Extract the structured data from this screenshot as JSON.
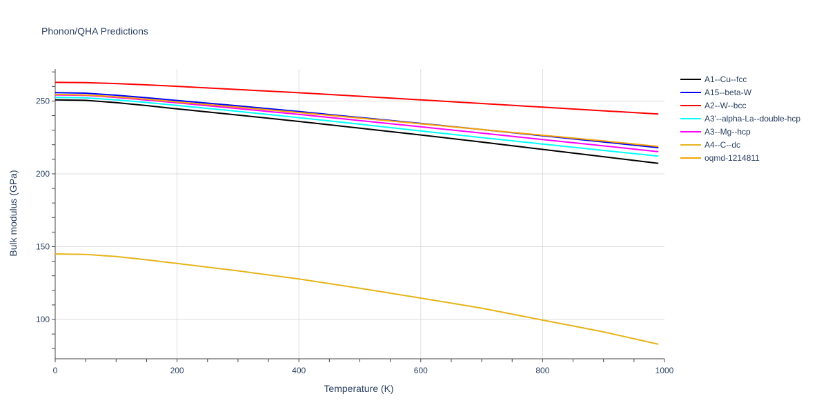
{
  "chart_data": {
    "type": "line",
    "title": "Phonon/QHA Predictions",
    "xlabel": "Temperature (K)",
    "ylabel": "Bulk modulus (GPa)",
    "xlim": [
      0,
      1000
    ],
    "ylim": [
      73,
      272
    ],
    "x_ticks": [
      0,
      200,
      400,
      600,
      800,
      1000
    ],
    "x_tick_labels": [
      "0",
      "200",
      "400",
      "600",
      "800",
      "1000"
    ],
    "y_ticks": [
      100,
      150,
      200,
      250
    ],
    "y_tick_labels": [
      "100",
      "150",
      "200",
      "250"
    ],
    "grid": true,
    "legend_position": "right",
    "x": [
      0,
      50,
      100,
      150,
      200,
      300,
      400,
      500,
      600,
      700,
      800,
      900,
      990
    ],
    "series": [
      {
        "name": "A1--Cu--fcc",
        "color": "#000000",
        "values": [
          250.8,
          250.5,
          248.9,
          246.9,
          244.6,
          240.4,
          236.0,
          231.4,
          226.7,
          221.8,
          216.8,
          211.8,
          207.2
        ]
      },
      {
        "name": "A15--beta-W",
        "color": "#0000ff",
        "values": [
          255.8,
          255.4,
          254.0,
          252.3,
          250.4,
          246.7,
          242.8,
          238.7,
          234.6,
          230.4,
          226.2,
          221.9,
          218.0
        ]
      },
      {
        "name": "A2--W--bcc",
        "color": "#ff0000",
        "values": [
          262.8,
          262.6,
          262.0,
          261.1,
          260.1,
          257.9,
          255.7,
          253.3,
          250.8,
          248.3,
          245.8,
          243.3,
          241.1
        ]
      },
      {
        "name": "A3'--alpha-La--double-hcp",
        "color": "#00ffff",
        "values": [
          252.5,
          252.2,
          250.8,
          249.0,
          247.0,
          242.9,
          238.6,
          234.1,
          229.5,
          224.9,
          220.5,
          216.1,
          212.2
        ]
      },
      {
        "name": "A3--Mg--hcp",
        "color": "#ff00ff",
        "values": [
          254.2,
          253.9,
          252.5,
          250.7,
          248.8,
          244.8,
          240.8,
          236.6,
          232.3,
          228.0,
          223.6,
          219.2,
          215.2
        ]
      },
      {
        "name": "A4--C--dc",
        "color": "#e6b319",
        "values": [
          145.0,
          144.7,
          143.2,
          141.0,
          138.5,
          133.4,
          127.8,
          121.4,
          114.7,
          107.8,
          99.6,
          91.5,
          83.0
        ]
      },
      {
        "name": "oqmd-1214811",
        "color": "#f5a300",
        "values": [
          254.5,
          254.2,
          252.9,
          251.3,
          249.4,
          245.8,
          242.1,
          238.3,
          234.4,
          230.4,
          226.5,
          222.6,
          218.8
        ]
      }
    ]
  }
}
